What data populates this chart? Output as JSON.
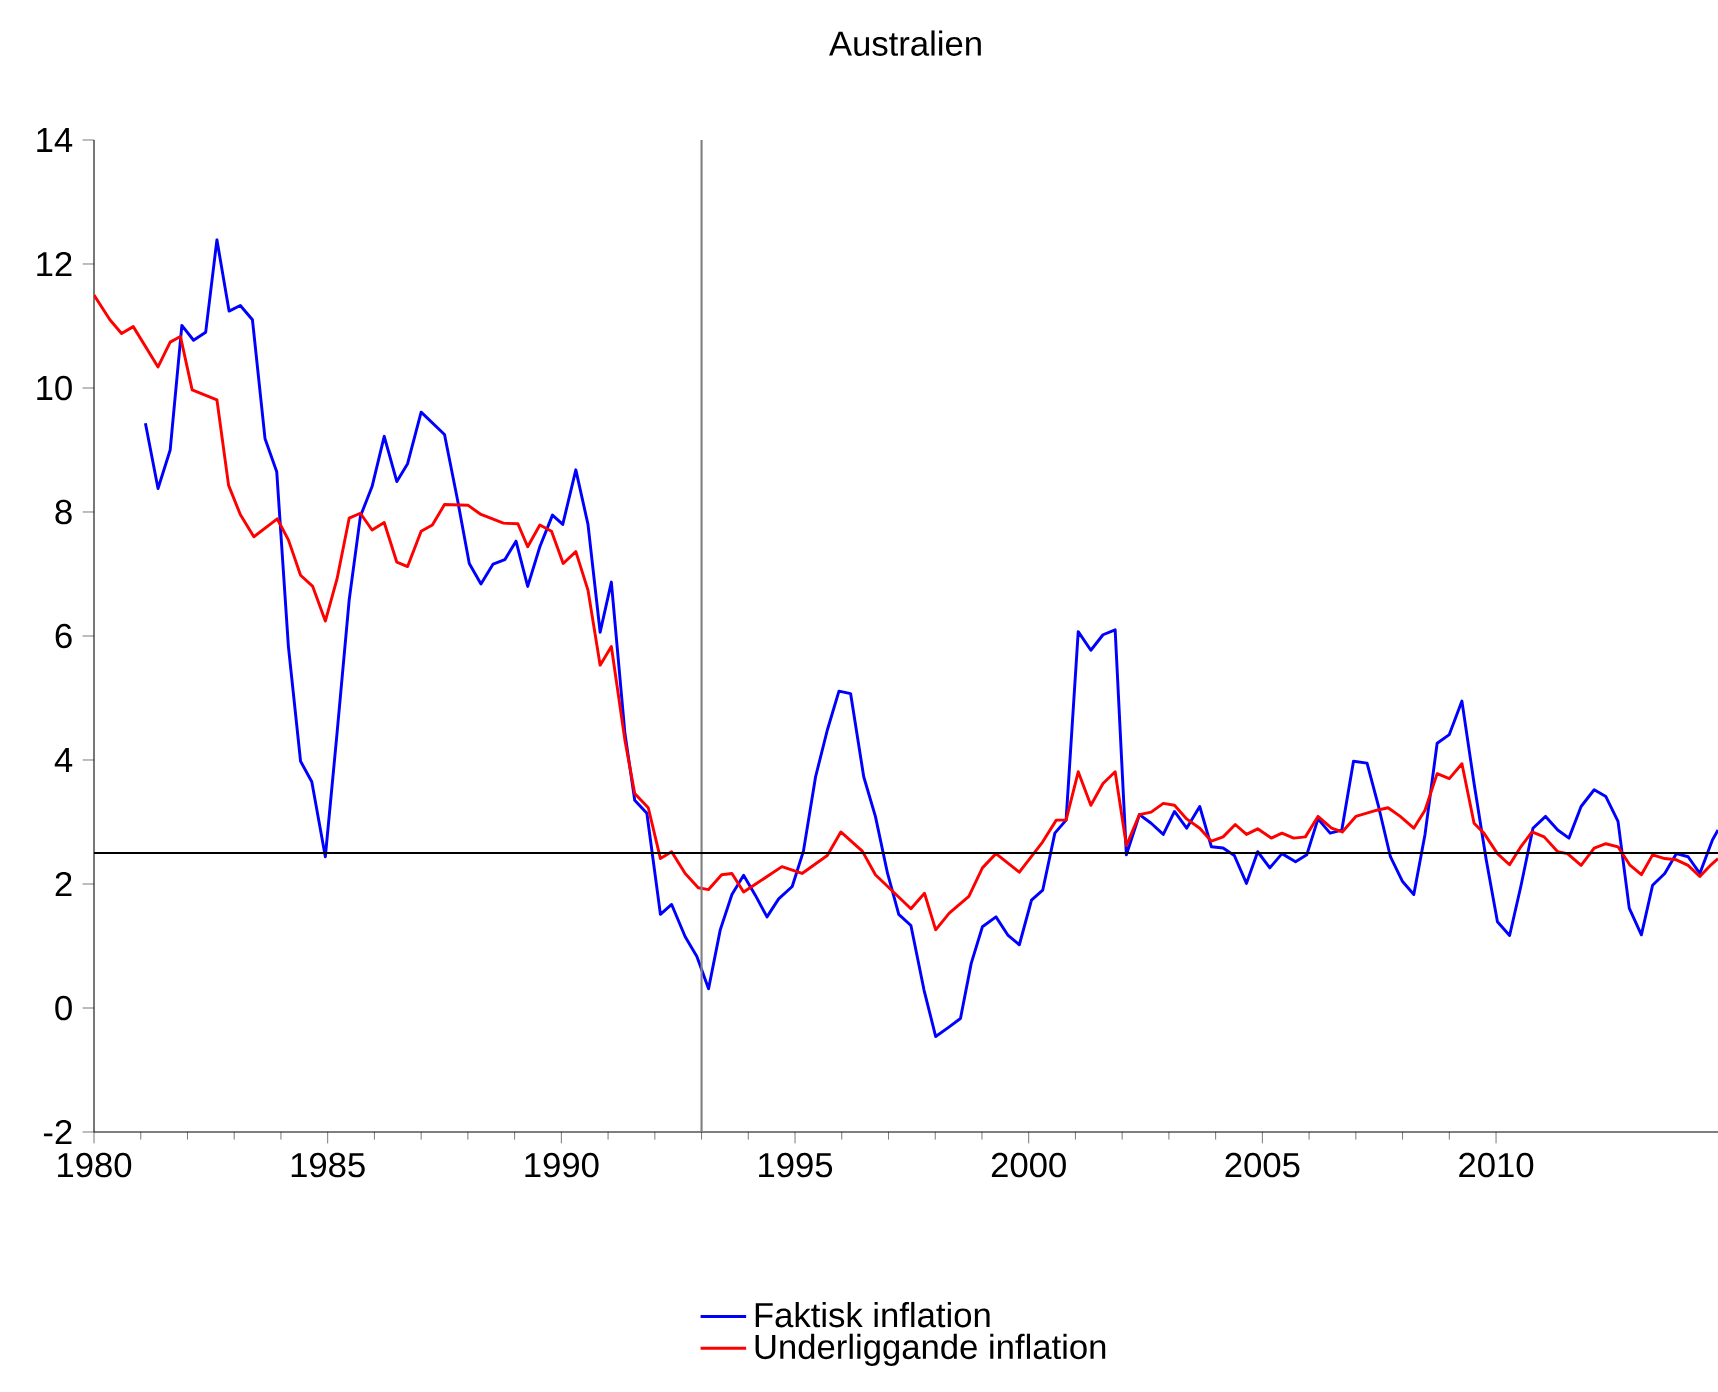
{
  "chart_data": {
    "type": "line",
    "title": "Australien",
    "xlim": [
      1980,
      2014.75
    ],
    "xticks": [
      1980,
      1985,
      1990,
      1995,
      2000,
      2005,
      2010
    ],
    "ylim": [
      -2,
      14
    ],
    "yticks": [
      -2,
      0,
      2,
      4,
      6,
      8,
      10,
      12,
      14
    ],
    "legend": "bottom",
    "marker": "none",
    "line_style": "solid",
    "ref_lines": [
      {
        "axis": "x",
        "value": 1993,
        "color": "#808080"
      },
      {
        "axis": "y",
        "value": 2.5,
        "color": "#000000"
      }
    ],
    "series": [
      {
        "name": "Faktisk inflation",
        "color": "#0000ff",
        "x": [
          1981.1,
          1981.37,
          1981.63,
          1981.88,
          1982.13,
          1982.39,
          1982.63,
          1982.89,
          1983.13,
          1983.39,
          1983.66,
          1983.91,
          1984.16,
          1984.42,
          1984.66,
          1984.95,
          1985.2,
          1985.46,
          1985.7,
          1985.95,
          1986.21,
          1986.48,
          1986.71,
          1987.0,
          1987.5,
          1987.78,
          1988.03,
          1988.28,
          1988.54,
          1988.79,
          1989.03,
          1989.28,
          1989.54,
          1989.81,
          1990.03,
          1990.31,
          1990.57,
          1990.83,
          1991.07,
          1991.36,
          1991.57,
          1991.83,
          1992.12,
          1992.36,
          1992.65,
          1992.9,
          1993.15,
          1993.4,
          1993.65,
          1993.9,
          1994.15,
          1994.4,
          1994.65,
          1994.94,
          1995.18,
          1995.44,
          1995.69,
          1995.94,
          1996.19,
          1996.47,
          1996.72,
          1996.98,
          1997.22,
          1997.48,
          1997.76,
          1998.01,
          1998.27,
          1998.54,
          1998.77,
          1999.01,
          1999.3,
          1999.56,
          1999.8,
          2000.06,
          2000.3,
          2000.56,
          2000.8,
          2001.06,
          2001.33,
          2001.59,
          2001.85,
          2002.09,
          2002.37,
          2002.62,
          2002.88,
          2003.12,
          2003.38,
          2003.66,
          2003.91,
          2004.16,
          2004.4,
          2004.66,
          2004.9,
          2005.16,
          2005.42,
          2005.71,
          2005.95,
          2006.19,
          2006.45,
          2006.7,
          2006.95,
          2007.24,
          2007.48,
          2007.74,
          2008.0,
          2008.24,
          2008.48,
          2008.74,
          2009.0,
          2009.27,
          2009.53,
          2009.79,
          2010.03,
          2010.29,
          2010.53,
          2010.79,
          2011.06,
          2011.32,
          2011.56,
          2011.82,
          2012.1,
          2012.35,
          2012.61,
          2012.85,
          2013.11,
          2013.35,
          2013.61,
          2013.86,
          2014.11,
          2014.36,
          2014.63,
          2014.75
        ],
        "values": [
          9.43,
          8.38,
          9.0,
          11.01,
          10.77,
          10.9,
          12.39,
          11.24,
          11.33,
          11.1,
          9.18,
          8.65,
          5.83,
          3.98,
          3.65,
          2.44,
          4.43,
          6.58,
          7.93,
          8.41,
          9.22,
          8.49,
          8.78,
          9.61,
          9.25,
          8.19,
          7.17,
          6.84,
          7.16,
          7.23,
          7.53,
          6.8,
          7.44,
          7.95,
          7.8,
          8.68,
          7.8,
          6.06,
          6.87,
          4.43,
          3.35,
          3.14,
          1.51,
          1.67,
          1.15,
          0.83,
          0.31,
          1.26,
          1.83,
          2.14,
          1.82,
          1.47,
          1.76,
          1.96,
          2.53,
          3.73,
          4.48,
          5.11,
          5.07,
          3.73,
          3.09,
          2.17,
          1.51,
          1.33,
          0.29,
          -0.46,
          -0.32,
          -0.17,
          0.72,
          1.31,
          1.47,
          1.17,
          1.02,
          1.74,
          1.9,
          2.82,
          3.03,
          6.07,
          5.77,
          6.02,
          6.1,
          2.47,
          3.12,
          2.98,
          2.8,
          3.17,
          2.9,
          3.25,
          2.6,
          2.58,
          2.46,
          2.01,
          2.52,
          2.26,
          2.49,
          2.36,
          2.47,
          3.05,
          2.82,
          2.87,
          3.98,
          3.95,
          3.27,
          2.44,
          2.04,
          1.83,
          2.8,
          4.27,
          4.41,
          4.95,
          3.62,
          2.39,
          1.39,
          1.17,
          1.96,
          2.9,
          3.09,
          2.87,
          2.74,
          3.25,
          3.52,
          3.41,
          3.01,
          1.61,
          1.18,
          1.98,
          2.17,
          2.49,
          2.44,
          2.17,
          2.71,
          2.87
        ]
      },
      {
        "name": "Underliggande inflation",
        "color": "#ff0000",
        "x": [
          1980.0,
          1980.34,
          1980.59,
          1980.84,
          1981.37,
          1981.63,
          1981.85,
          1982.1,
          1982.63,
          1982.88,
          1983.13,
          1983.42,
          1983.92,
          1984.16,
          1984.42,
          1984.68,
          1984.95,
          1985.2,
          1985.46,
          1985.7,
          1985.95,
          1986.21,
          1986.48,
          1986.71,
          1987.0,
          1987.24,
          1987.5,
          1988.0,
          1988.28,
          1988.76,
          1989.07,
          1989.28,
          1989.54,
          1989.79,
          1990.04,
          1990.31,
          1990.57,
          1990.83,
          1991.07,
          1991.36,
          1991.57,
          1991.86,
          1992.12,
          1992.36,
          1992.65,
          1992.93,
          1993.15,
          1993.43,
          1993.65,
          1993.9,
          1994.72,
          1995.15,
          1995.69,
          1995.98,
          1996.44,
          1996.72,
          1997.48,
          1997.77,
          1998.01,
          1998.3,
          1998.72,
          1999.01,
          1999.3,
          1999.8,
          2000.3,
          2000.59,
          2000.8,
          2001.06,
          2001.33,
          2001.59,
          2001.85,
          2002.09,
          2002.37,
          2002.62,
          2002.88,
          2003.12,
          2003.38,
          2003.66,
          2003.91,
          2004.16,
          2004.42,
          2004.66,
          2004.9,
          2005.19,
          2005.42,
          2005.67,
          2005.92,
          2006.19,
          2006.48,
          2006.71,
          2007.0,
          2007.45,
          2007.69,
          2007.95,
          2008.24,
          2008.48,
          2008.74,
          2009.0,
          2009.27,
          2009.53,
          2009.74,
          2010.03,
          2010.29,
          2010.53,
          2010.77,
          2011.03,
          2011.32,
          2011.53,
          2011.82,
          2012.1,
          2012.35,
          2012.61,
          2012.86,
          2013.11,
          2013.35,
          2013.61,
          2013.86,
          2014.11,
          2014.36,
          2014.6,
          2014.75
        ],
        "values": [
          11.5,
          11.1,
          10.88,
          10.99,
          10.34,
          10.74,
          10.83,
          9.97,
          9.81,
          8.43,
          7.96,
          7.6,
          7.89,
          7.55,
          6.98,
          6.8,
          6.24,
          6.92,
          7.9,
          7.98,
          7.71,
          7.83,
          7.19,
          7.12,
          7.69,
          7.79,
          8.12,
          8.11,
          7.96,
          7.82,
          7.81,
          7.44,
          7.79,
          7.69,
          7.17,
          7.36,
          6.74,
          5.53,
          5.83,
          4.32,
          3.46,
          3.23,
          2.41,
          2.52,
          2.17,
          1.94,
          1.91,
          2.15,
          2.17,
          1.87,
          2.28,
          2.17,
          2.46,
          2.84,
          2.53,
          2.15,
          1.6,
          1.85,
          1.26,
          1.53,
          1.8,
          2.26,
          2.49,
          2.19,
          2.68,
          3.03,
          3.03,
          3.81,
          3.27,
          3.62,
          3.81,
          2.62,
          3.12,
          3.16,
          3.3,
          3.27,
          3.05,
          2.9,
          2.69,
          2.76,
          2.96,
          2.8,
          2.89,
          2.74,
          2.82,
          2.74,
          2.76,
          3.09,
          2.9,
          2.84,
          3.09,
          3.19,
          3.23,
          3.09,
          2.9,
          3.19,
          3.78,
          3.7,
          3.94,
          2.98,
          2.82,
          2.49,
          2.31,
          2.6,
          2.84,
          2.76,
          2.52,
          2.49,
          2.3,
          2.58,
          2.65,
          2.6,
          2.31,
          2.15,
          2.47,
          2.41,
          2.39,
          2.3,
          2.12,
          2.31,
          2.41
        ]
      }
    ]
  }
}
